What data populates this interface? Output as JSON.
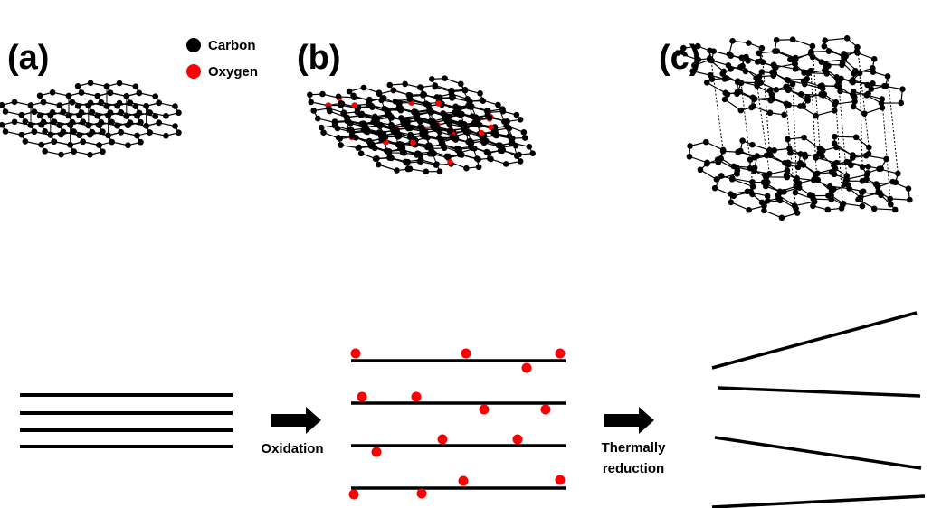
{
  "panels": [
    {
      "label": "(a)"
    },
    {
      "label": "(b)"
    },
    {
      "label": "(c)"
    }
  ],
  "legend": [
    {
      "label": "Carbon",
      "color": "#000000"
    },
    {
      "label": "Oxygen",
      "color": "#ff0000"
    }
  ],
  "steps": [
    {
      "label": "Oxidation"
    },
    {
      "lines": [
        "Thermally",
        "reduction"
      ]
    }
  ]
}
